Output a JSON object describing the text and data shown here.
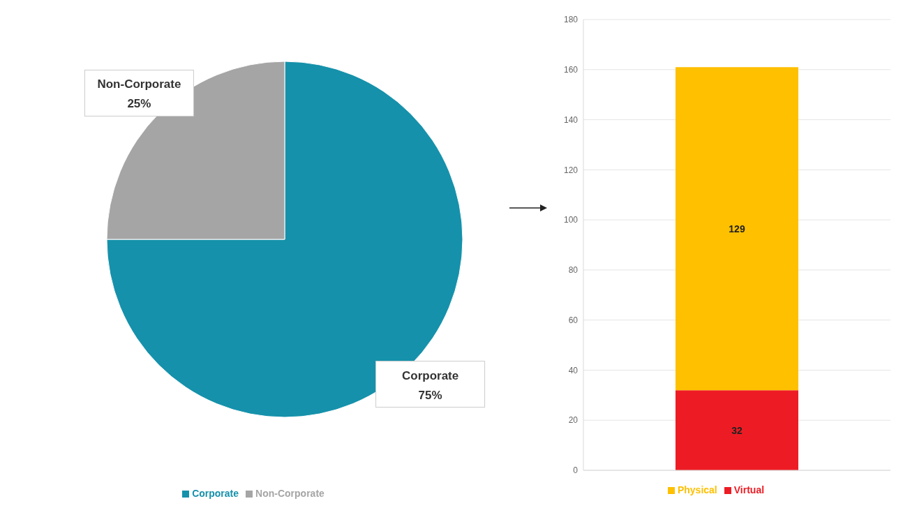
{
  "chart_data": [
    {
      "type": "pie",
      "categories": [
        "Corporate",
        "Non-Corporate"
      ],
      "values": [
        75,
        25
      ],
      "colors": [
        "#1591ab",
        "#a5a5a5"
      ],
      "value_labels": [
        "75%",
        "25%"
      ],
      "legend": "bottom"
    },
    {
      "type": "bar",
      "stacked": true,
      "categories": [
        null
      ],
      "series": [
        {
          "name": "Virtual",
          "color": "#ed1c24",
          "values": [
            32
          ]
        },
        {
          "name": "Physical",
          "color": "#ffc000",
          "values": [
            129
          ]
        }
      ],
      "ylim": [
        0,
        180
      ],
      "yticks": [
        0,
        20,
        40,
        60,
        80,
        100,
        120,
        140,
        160,
        180
      ],
      "grid": "y",
      "data_labels": true,
      "legend": "bottom"
    }
  ]
}
